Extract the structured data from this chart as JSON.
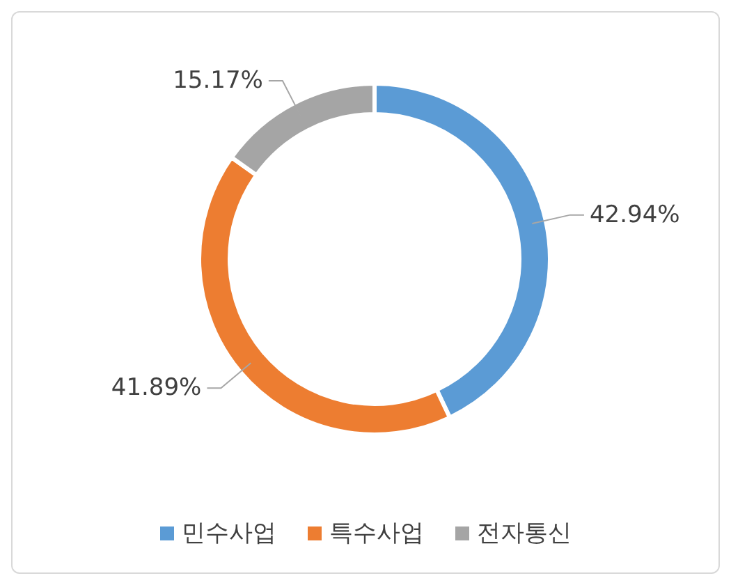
{
  "chart_data": {
    "type": "donut",
    "categories": [
      "민수사업",
      "특수사업",
      "전자통신"
    ],
    "values": [
      42.94,
      41.89,
      15.17
    ],
    "colors": [
      "#5b9bd5",
      "#ed7d31",
      "#a5a5a5"
    ],
    "value_labels": [
      "42.94%",
      "41.89%",
      "15.17%"
    ],
    "legend": "bottom"
  }
}
